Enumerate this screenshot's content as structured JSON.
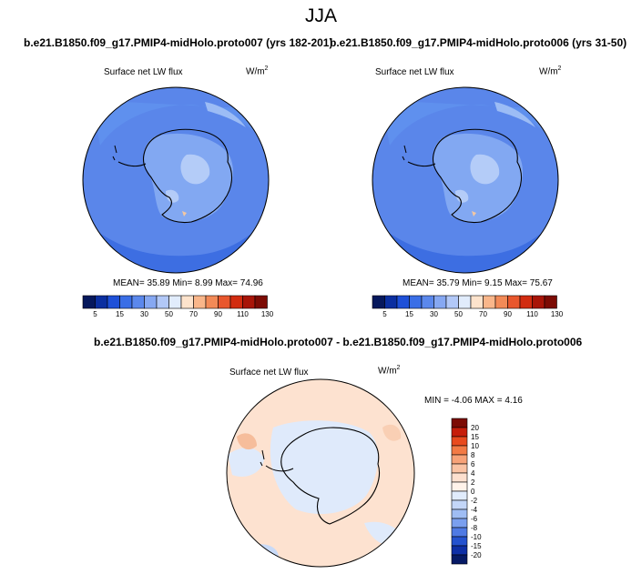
{
  "season": "JJA",
  "panels": [
    {
      "title": "b.e21.B1850.f09_g17.PMIP4-midHolo.proto007 (yrs 182-201)",
      "variable": "Surface net LW flux",
      "units_base": "W/m",
      "units_exp": "2",
      "stats": "MEAN=  35.89  Min=   8.99  Max=  74.96"
    },
    {
      "title": "b.e21.B1850.f09_g17.PMIP4-midHolo.proto006 (yrs 31-50)",
      "variable": "Surface net LW flux",
      "units_base": "W/m",
      "units_exp": "2",
      "stats": "MEAN=  35.79  Min=   9.15  Max=  75.67"
    }
  ],
  "diff": {
    "title": "b.e21.B1850.f09_g17.PMIP4-midHolo.proto007 - b.e21.B1850.f09_g17.PMIP4-midHolo.proto006",
    "variable": "Surface net LW flux",
    "units_base": "W/m",
    "units_exp": "2",
    "stats": "MIN = -4.06 MAX =  4.16"
  },
  "chart_data": [
    {
      "type": "heatmap",
      "title": "b.e21.B1850.f09_g17.PMIP4-midHolo.proto007 (yrs 182-201)",
      "projection": "south polar stereographic",
      "variable": "Surface net LW flux",
      "units": "W/m2",
      "stats": {
        "mean": 35.89,
        "min": 8.99,
        "max": 74.96
      },
      "colorbar": {
        "orientation": "horizontal",
        "tick_labels": [
          "5",
          "15",
          "30",
          "50",
          "70",
          "90",
          "110",
          "130"
        ],
        "colors": [
          "#06185c",
          "#0b2fa0",
          "#1e50d8",
          "#3a6ee6",
          "#5b88ec",
          "#86a8f2",
          "#b2c8f7",
          "#e1ecfc",
          "#fde3cc",
          "#f9b68a",
          "#f28a57",
          "#e8572d",
          "#d22c10",
          "#a81508",
          "#7c0b04"
        ]
      }
    },
    {
      "type": "heatmap",
      "title": "b.e21.B1850.f09_g17.PMIP4-midHolo.proto006 (yrs 31-50)",
      "projection": "south polar stereographic",
      "variable": "Surface net LW flux",
      "units": "W/m2",
      "stats": {
        "mean": 35.79,
        "min": 9.15,
        "max": 75.67
      },
      "colorbar": {
        "orientation": "horizontal",
        "tick_labels": [
          "5",
          "15",
          "30",
          "50",
          "70",
          "90",
          "110",
          "130"
        ],
        "colors": [
          "#06185c",
          "#0b2fa0",
          "#1e50d8",
          "#3a6ee6",
          "#5b88ec",
          "#86a8f2",
          "#b2c8f7",
          "#e1ecfc",
          "#fde3cc",
          "#f9b68a",
          "#f28a57",
          "#e8572d",
          "#d22c10",
          "#a81508",
          "#7c0b04"
        ]
      }
    },
    {
      "type": "heatmap",
      "title": "b.e21.B1850.f09_g17.PMIP4-midHolo.proto007 - b.e21.B1850.f09_g17.PMIP4-midHolo.proto006",
      "projection": "south polar stereographic",
      "variable": "Surface net LW flux",
      "units": "W/m2",
      "stats": {
        "min": -4.06,
        "max": 4.16
      },
      "colorbar": {
        "orientation": "vertical",
        "tick_labels": [
          "20",
          "15",
          "10",
          "8",
          "6",
          "4",
          "2",
          "0",
          "-2",
          "-4",
          "-6",
          "-8",
          "-10",
          "-15",
          "-20"
        ],
        "colors": [
          "#7c0b04",
          "#c61d0a",
          "#e84a1e",
          "#f27a45",
          "#f7a278",
          "#fac3a4",
          "#fde0cf",
          "#fff3ea",
          "#e1ecfc",
          "#c3d6f8",
          "#9fbdf4",
          "#7a9fef",
          "#4f7ae4",
          "#2452cf",
          "#0e2fa6",
          "#061a66"
        ]
      }
    }
  ]
}
